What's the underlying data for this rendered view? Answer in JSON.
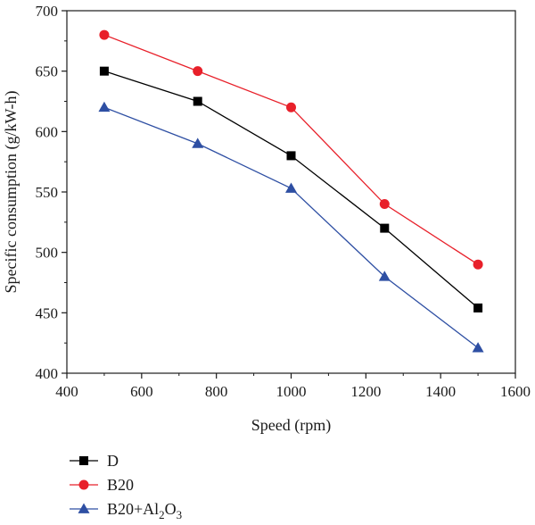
{
  "chart_data": {
    "type": "line",
    "xlabel": "Speed (rpm)",
    "ylabel": "Specific consumption (g/kW-h)",
    "xlim": [
      400,
      1600
    ],
    "ylim": [
      400,
      700
    ],
    "xticks": [
      400,
      600,
      800,
      1000,
      1200,
      1400,
      1600
    ],
    "yticks": [
      400,
      450,
      500,
      550,
      600,
      650,
      700
    ],
    "grid": false,
    "legend_position": "bottom-left, below plot",
    "series": [
      {
        "name": "D",
        "name_main": "D",
        "marker": "square",
        "color": "#000000",
        "x": [
          500,
          750,
          1000,
          1250,
          1500
        ],
        "y": [
          650,
          625,
          580,
          520,
          454
        ]
      },
      {
        "name": "B20",
        "name_main": "B20",
        "marker": "circle",
        "color": "#e8202a",
        "x": [
          500,
          750,
          1000,
          1250,
          1500
        ],
        "y": [
          680,
          650,
          620,
          540,
          490
        ]
      },
      {
        "name": "B20+Al2O3",
        "name_main": "B20+Al",
        "name_sub1": "2",
        "name_mid": "O",
        "name_sub2": "3",
        "marker": "triangle",
        "color": "#2e4fa3",
        "x": [
          500,
          750,
          1000,
          1250,
          1500
        ],
        "y": [
          620,
          590,
          553,
          480,
          421
        ]
      }
    ]
  }
}
